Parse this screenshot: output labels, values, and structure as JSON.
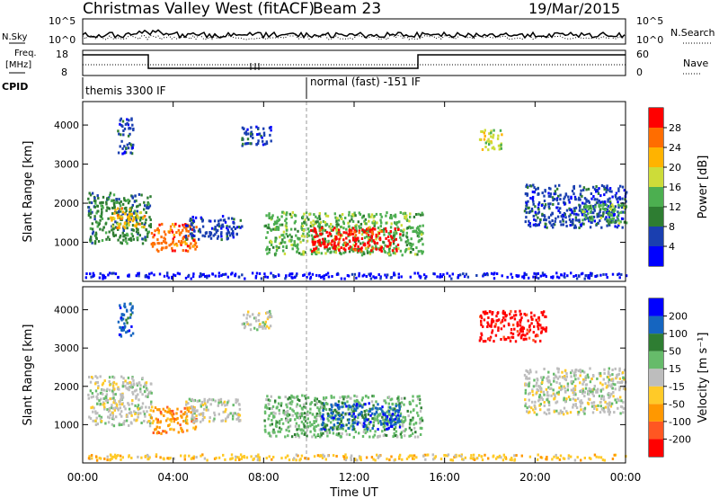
{
  "header": {
    "title": "Christmas Valley West (fitACF)",
    "beam": "Beam 23",
    "date": "19/Mar/2015"
  },
  "strip": {
    "nsky_label": "N.Sky",
    "nsky_ticks": [
      "10^5",
      "10^0"
    ],
    "nsearch_label": "N.Search",
    "nsearch_ticks": [
      "10^5",
      "10^0"
    ],
    "freq_label_1": "Freq.",
    "freq_label_2": "[MHz]",
    "freq_ticks": [
      "18",
      "8"
    ],
    "nave_label": "Nave",
    "nave_ticks": [
      "60",
      "0"
    ],
    "cpid_label": "CPID",
    "cpid_1": "themis 3300 IF",
    "cpid_2": "normal (fast) -151 IF"
  },
  "colors": {
    "power": [
      "#0000ff",
      "#1a3fb0",
      "#2e7d32",
      "#4caf50",
      "#cddc39",
      "#ffb300",
      "#ff6d00",
      "#ff0000"
    ],
    "velocity": [
      "#0000ff",
      "#1565c0",
      "#2e7d32",
      "#66bb6a",
      "#bdbdbd",
      "#ffca28",
      "#ff9800",
      "#ff5722",
      "#ff0000"
    ]
  },
  "chart_data": [
    {
      "type": "heatmap",
      "title": "",
      "xlabel": "Time UT",
      "ylabel": "Slant Range [km]",
      "x_ticks": [
        "00:00",
        "04:00",
        "08:00",
        "12:00",
        "16:00",
        "20:00",
        "00:00"
      ],
      "y_ticks": [
        "1000",
        "2000",
        "3000",
        "4000"
      ],
      "xlim": [
        0,
        24
      ],
      "ylim": [
        0,
        4600
      ],
      "colorbar_label": "Power [dB]",
      "colorbar_ticks": [
        "4",
        "8",
        "12",
        "16",
        "20",
        "24",
        "28"
      ],
      "colorbar_range": [
        0,
        32
      ],
      "regions": [
        {
          "x": [
            0.2,
            3.0
          ],
          "y": [
            1000,
            2300
          ],
          "level": 2,
          "value": 14
        },
        {
          "x": [
            1.2,
            2.7
          ],
          "y": [
            1400,
            1900
          ],
          "level": 5,
          "value": 22
        },
        {
          "x": [
            3.0,
            5.0
          ],
          "y": [
            800,
            1500
          ],
          "level": 6,
          "value": 26
        },
        {
          "x": [
            4.5,
            7.0
          ],
          "y": [
            1100,
            1700
          ],
          "level": 1,
          "value": 8
        },
        {
          "x": [
            8.0,
            15.0
          ],
          "y": [
            700,
            1800
          ],
          "level": 3,
          "value": 14
        },
        {
          "x": [
            10.0,
            14.0
          ],
          "y": [
            800,
            1400
          ],
          "level": 7,
          "value": 28
        },
        {
          "x": [
            7.0,
            8.3
          ],
          "y": [
            3500,
            4000
          ],
          "level": 1,
          "value": 6
        },
        {
          "x": [
            17.5,
            18.5
          ],
          "y": [
            3400,
            3900
          ],
          "level": 4,
          "value": 18
        },
        {
          "x": [
            19.5,
            24.0
          ],
          "y": [
            1400,
            2500
          ],
          "level": 1,
          "value": 6
        },
        {
          "x": [
            22.0,
            24.0
          ],
          "y": [
            1500,
            2000
          ],
          "level": 3,
          "value": 12
        },
        {
          "x": [
            1.5,
            2.2
          ],
          "y": [
            3300,
            4200
          ],
          "level": 1,
          "value": 6
        },
        {
          "x": [
            0.0,
            24.0
          ],
          "y": [
            100,
            250
          ],
          "level": 0,
          "value": 4
        }
      ]
    },
    {
      "type": "heatmap",
      "title": "",
      "xlabel": "Time UT",
      "ylabel": "Slant Range [km]",
      "x_ticks": [
        "00:00",
        "04:00",
        "08:00",
        "12:00",
        "16:00",
        "20:00",
        "00:00"
      ],
      "y_ticks": [
        "1000",
        "2000",
        "3000",
        "4000"
      ],
      "xlim": [
        0,
        24
      ],
      "ylim": [
        0,
        4600
      ],
      "colorbar_label": "Velocity [m s⁻¹]",
      "colorbar_ticks": [
        "200",
        "100",
        "50",
        "15",
        "-15",
        "-50",
        "-100",
        "-200"
      ],
      "colorbar_range": [
        -250,
        250
      ],
      "regions": [
        {
          "x": [
            0.2,
            3.0
          ],
          "y": [
            1000,
            2300
          ],
          "level": 4,
          "value": 0
        },
        {
          "x": [
            3.0,
            5.0
          ],
          "y": [
            800,
            1500
          ],
          "level": 6,
          "value": -60
        },
        {
          "x": [
            4.5,
            7.0
          ],
          "y": [
            1100,
            1700
          ],
          "level": 4,
          "value": 0
        },
        {
          "x": [
            8.0,
            15.0
          ],
          "y": [
            700,
            1800
          ],
          "level": 3,
          "value": 30
        },
        {
          "x": [
            10.5,
            14.0
          ],
          "y": [
            900,
            1600
          ],
          "level": 1,
          "value": 120
        },
        {
          "x": [
            7.0,
            8.3
          ],
          "y": [
            3500,
            4000
          ],
          "level": 4,
          "value": 0
        },
        {
          "x": [
            17.5,
            20.5
          ],
          "y": [
            3200,
            4000
          ],
          "level": 8,
          "value": -200
        },
        {
          "x": [
            19.5,
            24.0
          ],
          "y": [
            1300,
            2500
          ],
          "level": 4,
          "value": 0
        },
        {
          "x": [
            1.5,
            2.2
          ],
          "y": [
            3300,
            4200
          ],
          "level": 1,
          "value": 100
        },
        {
          "x": [
            0.0,
            24.0
          ],
          "y": [
            100,
            250
          ],
          "level": 5,
          "value": -20
        }
      ]
    }
  ]
}
